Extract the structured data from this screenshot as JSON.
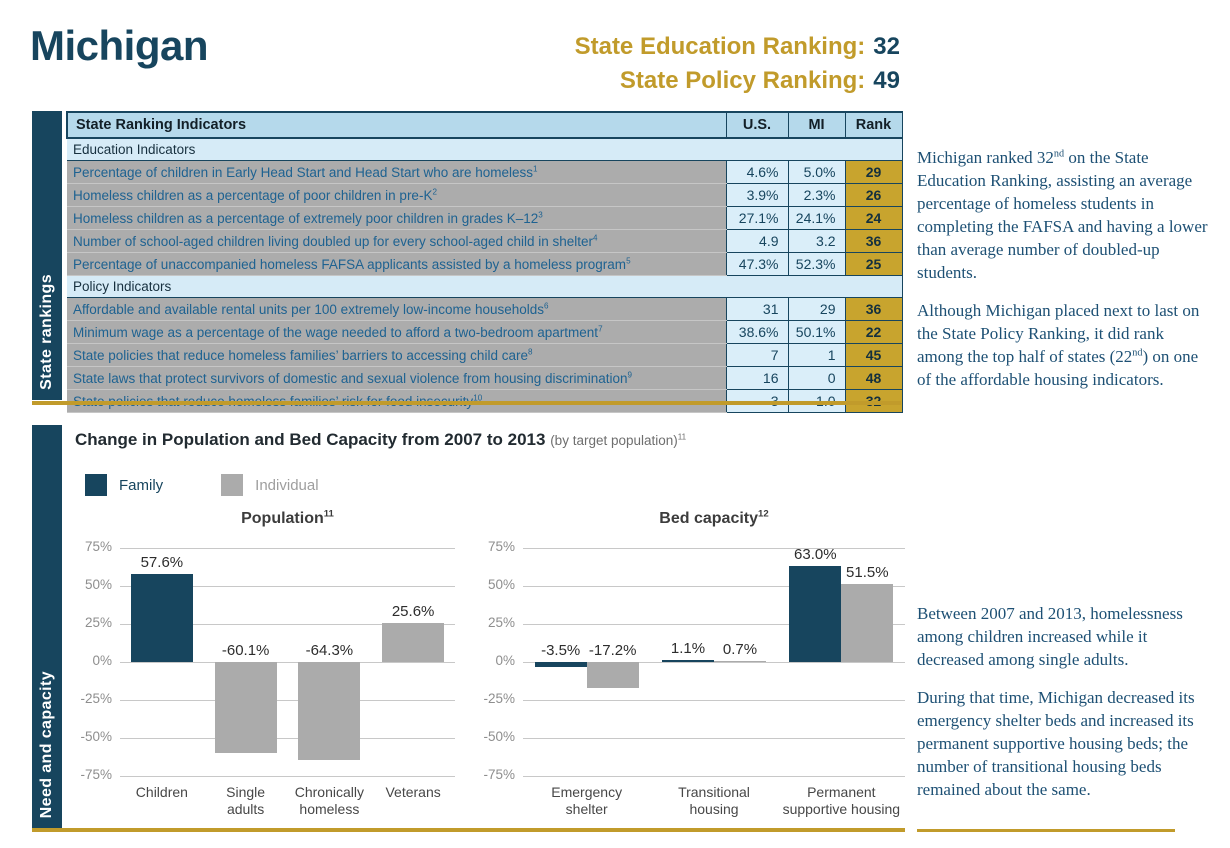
{
  "page": {
    "title": "Michigan"
  },
  "header": {
    "rankings": [
      {
        "label": "State Education Ranking:",
        "value": "32"
      },
      {
        "label": "State Policy Ranking:",
        "value": "49"
      }
    ]
  },
  "colors": {
    "family": "#17455E",
    "individual": "#ABABAB",
    "gold": "#C19B2B"
  },
  "rankings_section": {
    "sidebar_label": "State rankings",
    "table": {
      "columns": [
        "State Ranking Indicators",
        "U.S.",
        "MI",
        "Rank"
      ],
      "rows": [
        {
          "type": "section",
          "label": "Education Indicators"
        },
        {
          "type": "data",
          "label": "Percentage of children in Early Head Start and Head Start who are homeless",
          "sup": "1",
          "us": "4.6%",
          "mi": "5.0%",
          "rank": "29"
        },
        {
          "type": "data",
          "label": "Homeless children as a percentage of poor children in pre-K",
          "sup": "2",
          "us": "3.9%",
          "mi": "2.3%",
          "rank": "26"
        },
        {
          "type": "data",
          "label": "Homeless children as a percentage of extremely poor children in grades K–12",
          "sup": "3",
          "us": "27.1%",
          "mi": "24.1%",
          "rank": "24"
        },
        {
          "type": "data",
          "label": "Number of school-aged children living doubled up for every school-aged child in shelter",
          "sup": "4",
          "us": "4.9",
          "mi": "3.2",
          "rank": "36"
        },
        {
          "type": "data",
          "label": "Percentage of unaccompanied homeless FAFSA applicants assisted by a homeless program",
          "sup": "5",
          "us": "47.3%",
          "mi": "52.3%",
          "rank": "25"
        },
        {
          "type": "section",
          "label": "Policy Indicators"
        },
        {
          "type": "data",
          "label": "Affordable and available rental units per 100 extremely low-income households",
          "sup": "6",
          "us": "31",
          "mi": "29",
          "rank": "36"
        },
        {
          "type": "data",
          "label": "Minimum wage as a percentage of the wage needed to afford a two-bedroom apartment",
          "sup": "7",
          "us": "38.6%",
          "mi": "50.1%",
          "rank": "22"
        },
        {
          "type": "data",
          "label": "State policies that reduce homeless families’ barriers to accessing child care",
          "sup": "8",
          "us": "7",
          "mi": "1",
          "rank": "45"
        },
        {
          "type": "data",
          "label": "State laws that protect survivors of domestic and sexual violence from housing discrimination",
          "sup": "9",
          "us": "16",
          "mi": "0",
          "rank": "48"
        },
        {
          "type": "data",
          "label": "State policies that reduce homeless families’ risk for food insecurity",
          "sup": "10",
          "us": "3",
          "mi": "1.0",
          "rank": "32"
        }
      ]
    },
    "note_paragraphs": [
      "Michigan ranked 32nd on the State Education Ranking, assisting an average percentage of homeless students in completing the FAFSA and having a lower than average number of doubled-up students.",
      "Although Michigan placed next to last on the State Policy Ranking, it did rank among the top half of states (22nd) on one of the affordable housing indicators."
    ]
  },
  "capacity_section": {
    "sidebar_label": "Need and capacity",
    "heading": "Change in Population and Bed Capacity from 2007 to 2013",
    "heading_note": "(by target population)",
    "heading_sup": "11",
    "legend": [
      {
        "label": "Family",
        "color_key": "family"
      },
      {
        "label": "Individual",
        "color_key": "individual"
      }
    ],
    "note_paragraphs": [
      "Between 2007 and 2013, homelessness among children increased while it decreased among single adults.",
      "During that time, Michigan decreased its emergency shelter beds and increased its permanent supportive housing beds; the number of transitional housing beds remained about the same."
    ]
  },
  "chart_data": [
    {
      "type": "bar",
      "title": "Population",
      "title_sup": "11",
      "ylim": [
        -75,
        75
      ],
      "ytick_step": 25,
      "ytick_suffix": "%",
      "grid": true,
      "categories": [
        "Children",
        "Single\nadults",
        "Chronically\nhomeless",
        "Veterans"
      ],
      "series": [
        {
          "name": "mixed",
          "groups": [
            "Family",
            "Individual",
            "Individual",
            "Individual"
          ],
          "values": [
            57.6,
            -60.1,
            -64.3,
            25.6
          ],
          "labels": [
            "57.6%",
            "-60.1%",
            "-64.3%",
            "25.6%"
          ]
        }
      ]
    },
    {
      "type": "bar",
      "title": "Bed capacity",
      "title_sup": "12",
      "ylim": [
        -75,
        75
      ],
      "ytick_step": 25,
      "ytick_suffix": "%",
      "grid": true,
      "categories": [
        "Emergency\nshelter",
        "Transitional\nhousing",
        "Permanent\nsupportive housing"
      ],
      "series": [
        {
          "name": "Family",
          "values": [
            -3.5,
            1.1,
            63.0
          ],
          "labels": [
            "-3.5%",
            "1.1%",
            "63.0%"
          ]
        },
        {
          "name": "Individual",
          "values": [
            -17.2,
            0.7,
            51.5
          ],
          "labels": [
            "-17.2%",
            "0.7%",
            "51.5%"
          ]
        }
      ]
    }
  ]
}
